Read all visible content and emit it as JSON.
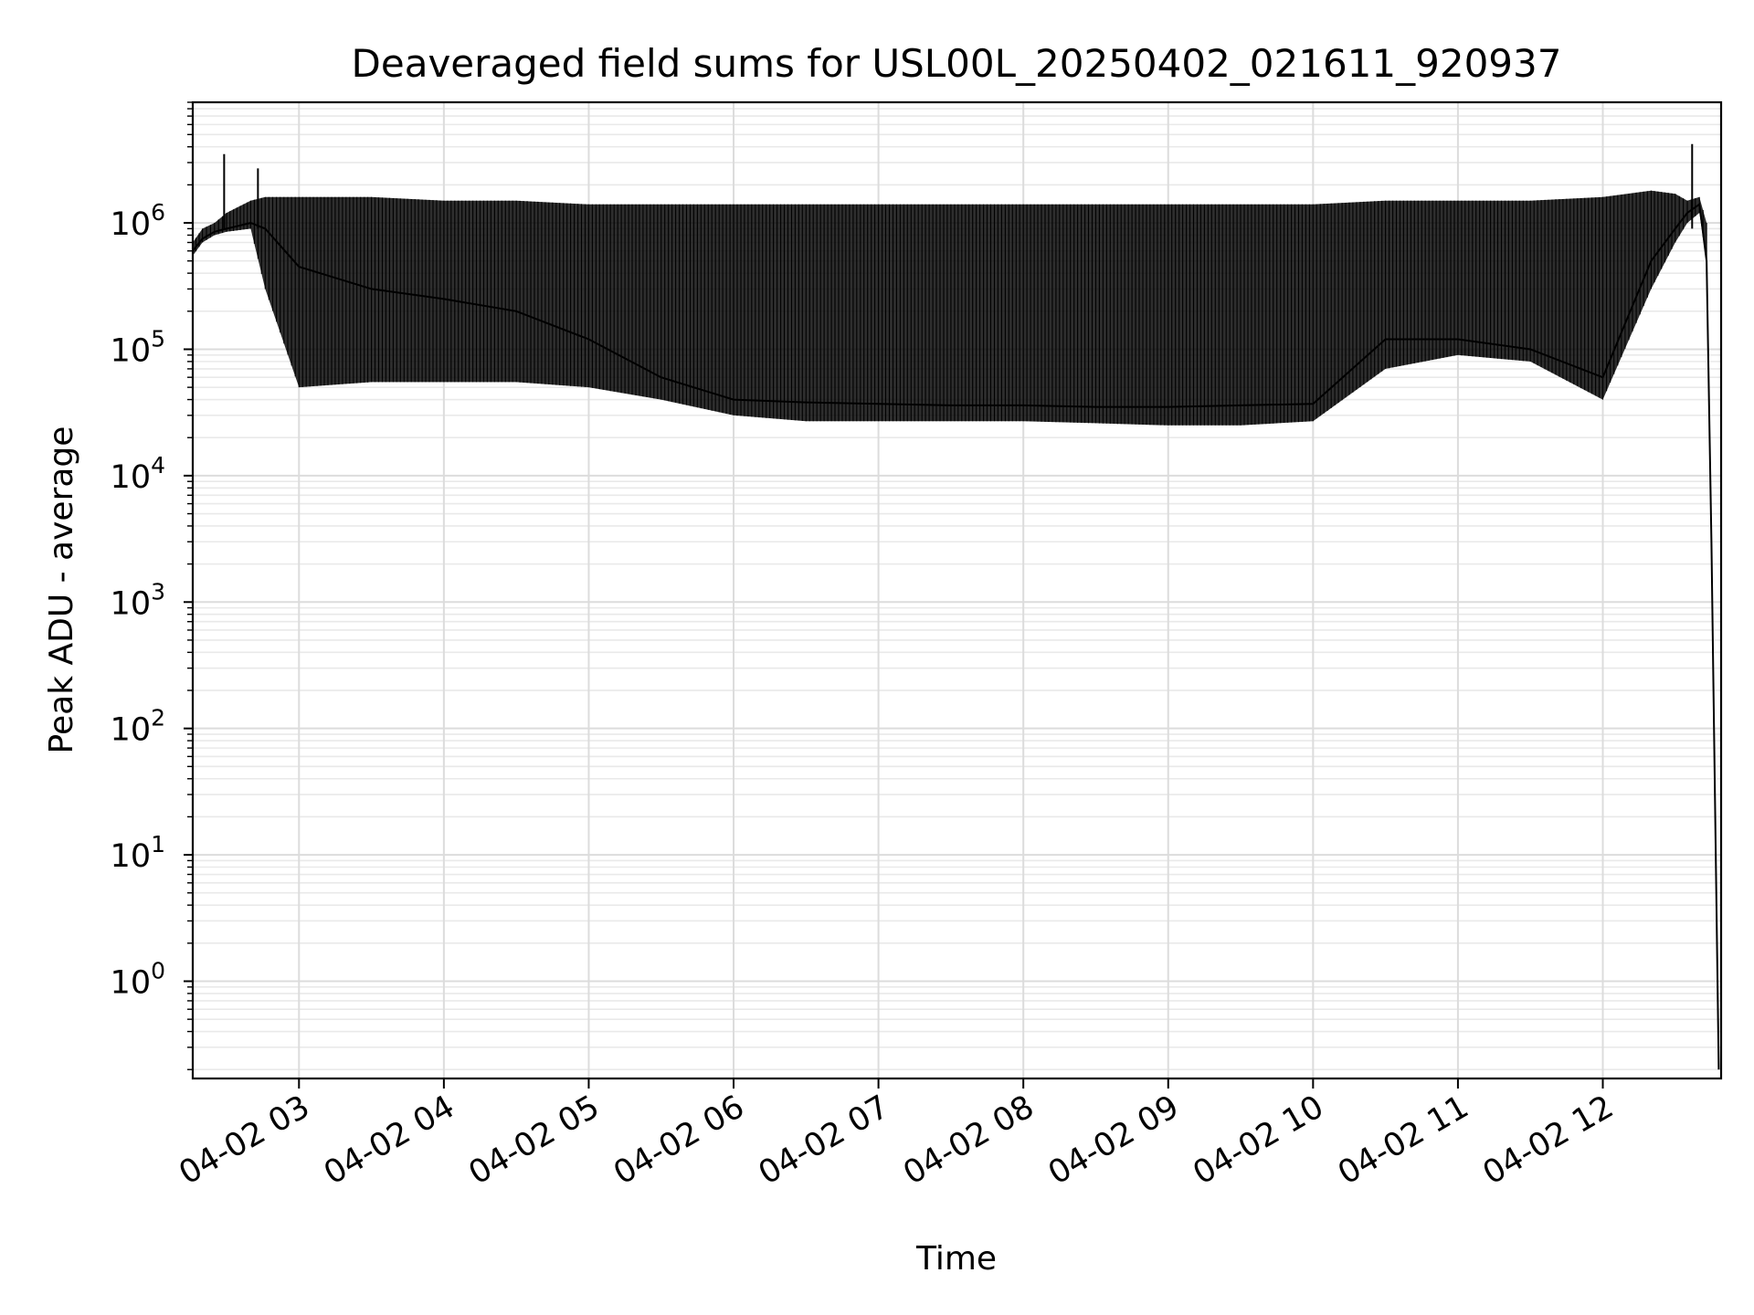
{
  "chart_data": {
    "type": "line",
    "title": "Deaveraged field sums for USL00L_20250402_021611_920937",
    "xlabel": "Time",
    "ylabel": "Peak ADU - average",
    "y_scale": "log",
    "ylim": [
      0.17,
      9000000
    ],
    "xlim": [
      "2025-04-02 02:16",
      "2025-04-02 12:49"
    ],
    "grid": true,
    "legend": "none",
    "line_color": "#000000",
    "x_ticks": [
      "04-02 03",
      "04-02 04",
      "04-02 05",
      "04-02 06",
      "04-02 07",
      "04-02 08",
      "04-02 09",
      "04-02 10",
      "04-02 11",
      "04-02 12"
    ],
    "y_ticks": [
      {
        "base": "10",
        "exp": "0",
        "value": 1
      },
      {
        "base": "10",
        "exp": "1",
        "value": 10
      },
      {
        "base": "10",
        "exp": "2",
        "value": 100
      },
      {
        "base": "10",
        "exp": "3",
        "value": 1000
      },
      {
        "base": "10",
        "exp": "4",
        "value": 10000
      },
      {
        "base": "10",
        "exp": "5",
        "value": 100000
      },
      {
        "base": "10",
        "exp": "6",
        "value": 1000000
      }
    ],
    "series": [
      {
        "x": [
          "2025-04-02 02:16",
          "2025-04-02 02:20",
          "2025-04-02 02:25",
          "2025-04-02 02:30",
          "2025-04-02 02:40",
          "2025-04-02 02:46",
          "2025-04-02 03:00",
          "2025-04-02 03:30",
          "2025-04-02 04:00",
          "2025-04-02 04:30",
          "2025-04-02 05:00",
          "2025-04-02 05:30",
          "2025-04-02 06:00",
          "2025-04-02 06:30",
          "2025-04-02 07:00",
          "2025-04-02 07:30",
          "2025-04-02 08:00",
          "2025-04-02 08:30",
          "2025-04-02 09:00",
          "2025-04-02 09:30",
          "2025-04-02 10:00",
          "2025-04-02 10:30",
          "2025-04-02 11:00",
          "2025-04-02 11:30",
          "2025-04-02 12:00",
          "2025-04-02 12:20",
          "2025-04-02 12:30",
          "2025-04-02 12:35",
          "2025-04-02 12:40",
          "2025-04-02 12:43",
          "2025-04-02 12:45",
          "2025-04-02 12:48"
        ],
        "y": [
          600000,
          750000,
          850000,
          900000,
          1000000,
          900000,
          450000,
          300000,
          250000,
          200000,
          120000,
          60000,
          40000,
          38000,
          37000,
          36000,
          36000,
          35000,
          35000,
          36000,
          37000,
          120000,
          120000,
          100000,
          60000,
          500000,
          900000,
          1200000,
          1400000,
          500000,
          3000,
          0.2
        ],
        "band_low": [
          550000,
          700000,
          800000,
          850000,
          900000,
          300000,
          50000,
          55000,
          55000,
          55000,
          50000,
          40000,
          30000,
          27000,
          27000,
          27000,
          27000,
          26000,
          25000,
          25000,
          27000,
          70000,
          90000,
          80000,
          40000,
          300000,
          700000,
          1000000,
          1200000,
          500000,
          3000,
          0.2
        ],
        "band_high": [
          700000,
          900000,
          1000000,
          1200000,
          1500000,
          1600000,
          1600000,
          1600000,
          1500000,
          1500000,
          1400000,
          1400000,
          1400000,
          1400000,
          1400000,
          1400000,
          1400000,
          1400000,
          1400000,
          1400000,
          1400000,
          1500000,
          1500000,
          1500000,
          1600000,
          1800000,
          1700000,
          1500000,
          1600000,
          1000000,
          3000,
          0.2
        ],
        "spikes": [
          {
            "x": "2025-04-02 02:29",
            "y": 3500000
          },
          {
            "x": "2025-04-02 02:43",
            "y": 2700000
          },
          {
            "x": "2025-04-02 12:37",
            "y": 4200000
          }
        ]
      }
    ]
  }
}
